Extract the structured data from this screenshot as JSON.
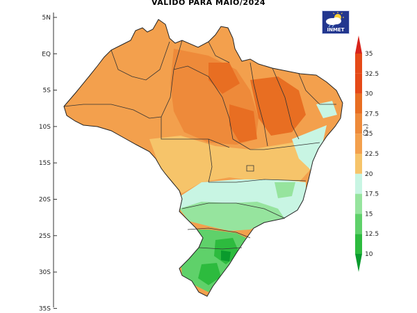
{
  "title": "VALIDO PARA MAIO/2024",
  "logo": {
    "label": "INMET",
    "icon": "sun-cloud-icon"
  },
  "map": {
    "latitude_labels": [
      "5N",
      "EQ",
      "5S",
      "10S",
      "15S",
      "20S",
      "25S",
      "30S",
      "35S"
    ],
    "region": "Brazil",
    "variable": "temperature"
  },
  "legend": {
    "unit": "(°C)",
    "levels": [
      "10",
      "12.5",
      "15",
      "17.5",
      "20",
      "22.5",
      "25",
      "27.5",
      "30",
      "32.5",
      "35"
    ],
    "colors": [
      "#0a9b2d",
      "#2dbb3e",
      "#5fd16a",
      "#96e49e",
      "#c8f5e3",
      "#f6c46a",
      "#f3a04d",
      "#ee8a3a",
      "#e86e22",
      "#e54a18",
      "#d8231b"
    ]
  }
}
